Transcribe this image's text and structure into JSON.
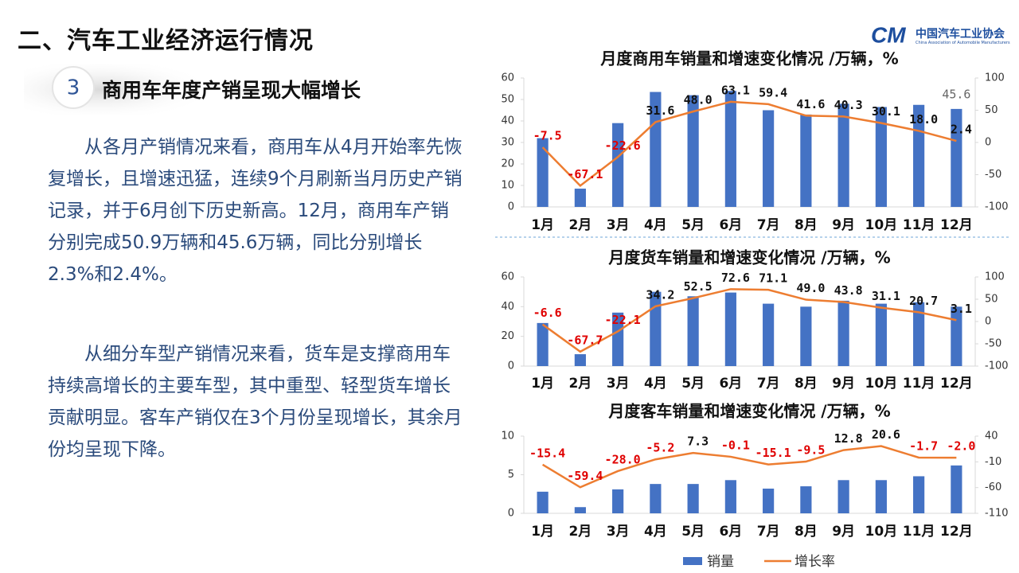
{
  "header": {
    "title": "二、汽车工业经济运行情况",
    "logo_name": "中国汽车工业协会",
    "logo_subtitle": "China Association of Automobile Manufacturers"
  },
  "section": {
    "number": "3",
    "heading": "商用车年度产销呈现大幅增长"
  },
  "paragraphs": [
    "从各月产销情况来看，商用车从4月开始率先恢复增长，且增速迅猛，连续9个月刷新当月历史产销记录，并于6月创下历史新高。12月，商用车产销分别完成50.9万辆和45.6万辆，同比分别增长2.3%和2.4%。",
    "从细分车型产销情况来看，货车是支撑商用车持续高增长的主要车型，其中重型、轻型货车增长贡献明显。客车产销仅在3个月份呈现增长，其余月份均呈现下降。"
  ],
  "chart_data": [
    {
      "type": "bar-line",
      "title": "月度商用车销量和增速变化情况  /万辆，%",
      "categories": [
        "1月",
        "2月",
        "3月",
        "4月",
        "5月",
        "6月",
        "7月",
        "8月",
        "9月",
        "10月",
        "11月",
        "12月"
      ],
      "series": [
        {
          "type": "bar",
          "color": "#4472c4",
          "values": [
            32,
            8.5,
            39,
            53.5,
            52,
            54,
            45,
            43,
            48,
            46.5,
            47.5,
            45.6
          ],
          "value_labels": [
            null,
            null,
            null,
            null,
            null,
            null,
            null,
            null,
            null,
            null,
            null,
            "45.6"
          ]
        },
        {
          "type": "line",
          "axis": "y2",
          "color": "#ed7d31",
          "values": [
            -7.5,
            -67.1,
            -22.6,
            31.6,
            48.0,
            63.1,
            59.4,
            41.6,
            40.3,
            30.1,
            18.0,
            2.4
          ],
          "value_labels": [
            "-7.5",
            "-67.1",
            "-22.6",
            "31.6",
            "48.0",
            "63.1",
            "59.4",
            "41.6",
            "40.3",
            "30.1",
            "18.0",
            "2.4"
          ]
        }
      ],
      "ylim": [
        0,
        60
      ],
      "yticks": [
        0,
        10,
        20,
        30,
        40,
        50,
        60
      ],
      "y2lim": [
        -100,
        100
      ],
      "y2ticks": [
        -100,
        -50,
        0,
        50,
        100
      ]
    },
    {
      "type": "bar-line",
      "title": "月度货车销量和增速变化情况  /万辆，%",
      "categories": [
        "1月",
        "2月",
        "3月",
        "4月",
        "5月",
        "6月",
        "7月",
        "8月",
        "9月",
        "10月",
        "11月",
        "12月"
      ],
      "series": [
        {
          "type": "bar",
          "color": "#4472c4",
          "values": [
            29,
            8,
            36,
            50,
            47,
            49.5,
            42,
            40,
            44,
            42,
            43,
            40
          ]
        },
        {
          "type": "line",
          "axis": "y2",
          "color": "#ed7d31",
          "values": [
            -6.6,
            -67.7,
            -22.1,
            34.2,
            52.5,
            72.6,
            71.1,
            49.0,
            43.8,
            31.1,
            20.7,
            3.1
          ],
          "value_labels": [
            "-6.6",
            "-67.7",
            "-22.1",
            "34.2",
            "52.5",
            "72.6",
            "71.1",
            "49.0",
            "43.8",
            "31.1",
            "20.7",
            "3.1"
          ]
        }
      ],
      "ylim": [
        0,
        60
      ],
      "yticks": [
        0,
        20,
        40,
        60
      ],
      "y2lim": [
        -100,
        100
      ],
      "y2ticks": [
        -100,
        -50,
        0,
        50,
        100
      ]
    },
    {
      "type": "bar-line",
      "title": "月度客车销量和增速变化情况  /万辆，%",
      "categories": [
        "1月",
        "2月",
        "3月",
        "4月",
        "5月",
        "6月",
        "7月",
        "8月",
        "9月",
        "10月",
        "11月",
        "12月"
      ],
      "series": [
        {
          "type": "bar",
          "name": "销量",
          "color": "#4472c4",
          "values": [
            2.8,
            0.8,
            3.1,
            3.8,
            3.8,
            4.3,
            3.2,
            3.5,
            4.3,
            4.3,
            4.8,
            6.2
          ]
        },
        {
          "type": "line",
          "name": "增长率",
          "axis": "y2",
          "color": "#ed7d31",
          "values": [
            -15.4,
            -59.4,
            -28.0,
            -5.2,
            7.3,
            -0.1,
            -15.1,
            -9.5,
            12.8,
            20.6,
            -1.7,
            -2.0
          ],
          "value_labels": [
            "-15.4",
            "-59.4",
            "-28.0",
            "-5.2",
            "7.3",
            "-0.1",
            "-15.1",
            "-9.5",
            "12.8",
            "20.6",
            "-1.7",
            "-2.0"
          ]
        }
      ],
      "ylim": [
        0,
        10
      ],
      "yticks": [
        0,
        5,
        10
      ],
      "y2lim": [
        -110,
        40
      ],
      "y2ticks": [
        -110,
        -60,
        -10,
        40
      ]
    }
  ]
}
